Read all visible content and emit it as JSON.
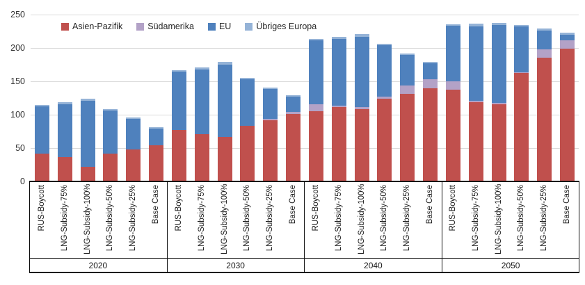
{
  "chart_data": {
    "type": "bar",
    "stacked": true,
    "title": "",
    "xlabel": "",
    "ylabel": "",
    "grid": true,
    "legend_position": "top",
    "y_axis": {
      "min": 0,
      "max": 250,
      "step": 50,
      "ticks": [
        "0",
        "50",
        "100",
        "150",
        "200",
        "250"
      ]
    },
    "groups": [
      "2020",
      "2030",
      "2040",
      "2050"
    ],
    "scenarios": [
      "RUS-Boycott",
      "LNG-Subsidy-75%",
      "LNG-Subsidy-100%",
      "LNG-Subsidy-50%",
      "LNG-Subsidy-25%",
      "Base Case"
    ],
    "series": [
      {
        "name": "Asien-Pazifik",
        "color": "#C0504D",
        "values": [
          [
            42,
            36,
            22,
            42,
            48,
            54
          ],
          [
            77,
            71,
            67,
            83,
            92,
            101
          ],
          [
            105,
            111,
            108,
            124,
            131,
            140
          ],
          [
            137,
            119,
            116,
            162,
            185,
            199
          ]
        ]
      },
      {
        "name": "Südamerika",
        "color": "#B3A2C7",
        "values": [
          [
            0,
            0,
            0,
            0,
            0,
            0
          ],
          [
            0,
            0,
            0,
            0,
            2,
            3
          ],
          [
            11,
            3,
            3,
            3,
            13,
            13
          ],
          [
            13,
            2,
            2,
            2,
            13,
            13
          ]
        ]
      },
      {
        "name": "EU",
        "color": "#4F81BD",
        "values": [
          [
            71,
            80,
            99,
            64,
            46,
            25
          ],
          [
            88,
            97,
            108,
            70,
            45,
            23
          ],
          [
            96,
            100,
            106,
            77,
            46,
            24
          ],
          [
            83,
            111,
            116,
            68,
            28,
            8
          ]
        ]
      },
      {
        "name": "Übriges Europa",
        "color": "#95B3D7",
        "values": [
          [
            2,
            3,
            3,
            2,
            2,
            2
          ],
          [
            2,
            3,
            4,
            2,
            2,
            2
          ],
          [
            2,
            3,
            4,
            2,
            2,
            2
          ],
          [
            2,
            4,
            4,
            2,
            3,
            3
          ]
        ]
      }
    ]
  }
}
